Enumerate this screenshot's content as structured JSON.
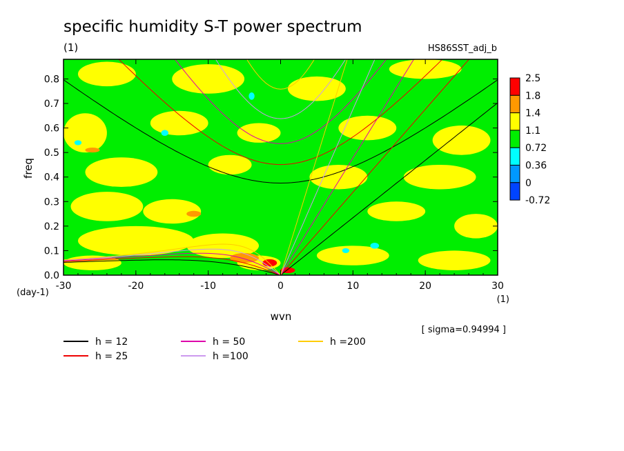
{
  "chart_data": {
    "type": "heatmap",
    "title": "specific humidity S-T power spectrum",
    "units_label": "(1)",
    "run_label": "HS86SST_adj_b",
    "xlabel": "wvn",
    "ylabel": "freq",
    "x_unit": "(1)",
    "y_unit": "(day-1)",
    "sigma_note": "[ sigma=0.94994 ]",
    "xlim": [
      -30,
      30
    ],
    "ylim": [
      0,
      0.88
    ],
    "x_ticks": [
      "-30",
      "-20",
      "-10",
      "0",
      "10",
      "20",
      "30"
    ],
    "y_ticks": [
      "0.0",
      "0.1",
      "0.2",
      "0.3",
      "0.4",
      "0.5",
      "0.6",
      "0.7",
      "0.8"
    ],
    "colorbar": {
      "levels": [
        "2.5",
        "1.8",
        "1.4",
        "1.1",
        "0.72",
        "0.36",
        "0",
        "-0.72"
      ],
      "colors": [
        "#ff0000",
        "#ff9900",
        "#ffff00",
        "#00ee00",
        "#00ffff",
        "#0099ff",
        "#0044ff"
      ]
    },
    "background_color": "#00ee00",
    "blobs": [
      {
        "x": -24,
        "y": 0.82,
        "rx": 4,
        "ry": 0.05,
        "level": "1.1-1.4"
      },
      {
        "x": -10,
        "y": 0.8,
        "rx": 5,
        "ry": 0.06,
        "level": "1.1-1.4"
      },
      {
        "x": 5,
        "y": 0.76,
        "rx": 4,
        "ry": 0.05,
        "level": "1.1-1.4"
      },
      {
        "x": 20,
        "y": 0.84,
        "rx": 5,
        "ry": 0.04,
        "level": "1.1-1.4"
      },
      {
        "x": -27,
        "y": 0.58,
        "rx": 3,
        "ry": 0.08,
        "level": "1.1-1.4"
      },
      {
        "x": -14,
        "y": 0.62,
        "rx": 4,
        "ry": 0.05,
        "level": "1.1-1.4"
      },
      {
        "x": -3,
        "y": 0.58,
        "rx": 3,
        "ry": 0.04,
        "level": "1.1-1.4"
      },
      {
        "x": 12,
        "y": 0.6,
        "rx": 4,
        "ry": 0.05,
        "level": "1.1-1.4"
      },
      {
        "x": 25,
        "y": 0.55,
        "rx": 4,
        "ry": 0.06,
        "level": "1.1-1.4"
      },
      {
        "x": -22,
        "y": 0.42,
        "rx": 5,
        "ry": 0.06,
        "level": "1.1-1.4"
      },
      {
        "x": -7,
        "y": 0.45,
        "rx": 3,
        "ry": 0.04,
        "level": "1.1-1.4"
      },
      {
        "x": 8,
        "y": 0.4,
        "rx": 4,
        "ry": 0.05,
        "level": "1.1-1.4"
      },
      {
        "x": 22,
        "y": 0.4,
        "rx": 5,
        "ry": 0.05,
        "level": "1.1-1.4"
      },
      {
        "x": -24,
        "y": 0.28,
        "rx": 5,
        "ry": 0.06,
        "level": "1.1-1.4"
      },
      {
        "x": -15,
        "y": 0.26,
        "rx": 4,
        "ry": 0.05,
        "level": "1.1-1.4"
      },
      {
        "x": 16,
        "y": 0.26,
        "rx": 4,
        "ry": 0.04,
        "level": "1.1-1.4"
      },
      {
        "x": 27,
        "y": 0.2,
        "rx": 3,
        "ry": 0.05,
        "level": "1.1-1.4"
      },
      {
        "x": -20,
        "y": 0.14,
        "rx": 8,
        "ry": 0.06,
        "level": "1.1-1.4"
      },
      {
        "x": -8,
        "y": 0.12,
        "rx": 5,
        "ry": 0.05,
        "level": "1.1-1.4"
      },
      {
        "x": 10,
        "y": 0.08,
        "rx": 5,
        "ry": 0.04,
        "level": "1.1-1.4"
      },
      {
        "x": 24,
        "y": 0.06,
        "rx": 5,
        "ry": 0.04,
        "level": "1.1-1.4"
      },
      {
        "x": -26,
        "y": 0.05,
        "rx": 4,
        "ry": 0.03,
        "level": "1.1-1.4"
      },
      {
        "x": -3,
        "y": 0.05,
        "rx": 3,
        "ry": 0.03,
        "level": "1.1-1.4"
      },
      {
        "x": -1.5,
        "y": 0.05,
        "rx": 1,
        "ry": 0.015,
        "level": "2.5+"
      },
      {
        "x": 1,
        "y": 0.02,
        "rx": 1,
        "ry": 0.012,
        "level": "2.5+"
      },
      {
        "x": -5,
        "y": 0.07,
        "rx": 2,
        "ry": 0.02,
        "level": "1.4-1.8"
      },
      {
        "x": -26,
        "y": 0.51,
        "rx": 1,
        "ry": 0.01,
        "level": "1.4-1.8"
      },
      {
        "x": -12,
        "y": 0.25,
        "rx": 1,
        "ry": 0.012,
        "level": "1.4-1.8"
      },
      {
        "x": -4,
        "y": 0.73,
        "rx": 0.4,
        "ry": 0.015,
        "level": "0.36-0.72"
      },
      {
        "x": -28,
        "y": 0.54,
        "rx": 0.5,
        "ry": 0.01,
        "level": "0.36-0.72"
      },
      {
        "x": 9,
        "y": 0.1,
        "rx": 0.5,
        "ry": 0.01,
        "level": "0.36-0.72"
      },
      {
        "x": -16,
        "y": 0.58,
        "rx": 0.5,
        "ry": 0.012,
        "level": "0.36-0.72"
      },
      {
        "x": 13,
        "y": 0.12,
        "rx": 0.6,
        "ry": 0.012,
        "level": "0.36-0.72"
      }
    ],
    "dispersion_curves": [
      {
        "name": "h = 12",
        "color": "#000000"
      },
      {
        "name": "h = 25",
        "color": "#ee0000"
      },
      {
        "name": "h = 50",
        "color": "#dd00aa"
      },
      {
        "name": "h =100",
        "color": "#cc99ee"
      },
      {
        "name": "h =200",
        "color": "#ffcc00"
      }
    ],
    "legend_placement": "bottom"
  }
}
